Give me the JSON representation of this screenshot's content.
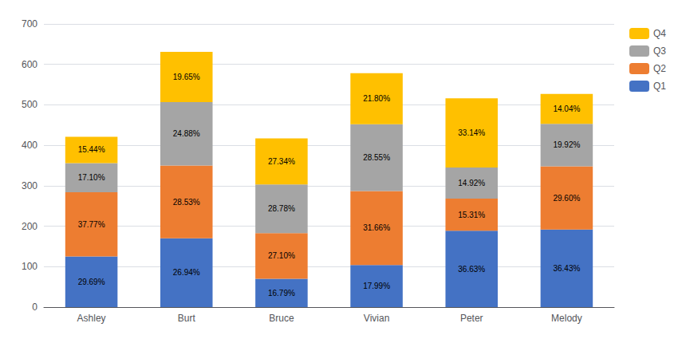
{
  "chart_data": {
    "type": "bar",
    "stacked": true,
    "categories": [
      "Ashley",
      "Burt",
      "Bruce",
      "Vivian",
      "Peter",
      "Melody"
    ],
    "series": [
      {
        "name": "Q1",
        "color": "#4472C4",
        "values": [
          125,
          170,
          70,
          104,
          189,
          192
        ],
        "share_labels": [
          "29.69%",
          "26.94%",
          "16.79%",
          "17.99%",
          "36.63%",
          "36.43%"
        ]
      },
      {
        "name": "Q2",
        "color": "#ED7D31",
        "values": [
          159,
          180,
          113,
          183,
          79,
          156
        ],
        "share_labels": [
          "37.77%",
          "28.53%",
          "27.10%",
          "31.66%",
          "15.31%",
          "29.60%"
        ]
      },
      {
        "name": "Q3",
        "color": "#A5A5A5",
        "values": [
          72,
          157,
          120,
          165,
          77,
          105
        ],
        "share_labels": [
          "17.10%",
          "24.88%",
          "28.78%",
          "28.55%",
          "14.92%",
          "19.92%"
        ]
      },
      {
        "name": "Q4",
        "color": "#FFC000",
        "values": [
          65,
          124,
          114,
          126,
          171,
          74
        ],
        "share_labels": [
          "15.44%",
          "19.65%",
          "27.34%",
          "21.80%",
          "33.14%",
          "14.04%"
        ]
      }
    ],
    "totals": [
      421,
      631,
      417,
      578,
      516,
      527
    ],
    "ylim": [
      0,
      700
    ],
    "yticks": [
      0,
      100,
      200,
      300,
      400,
      500,
      600,
      700
    ],
    "grid": true,
    "legend": "upper right"
  }
}
